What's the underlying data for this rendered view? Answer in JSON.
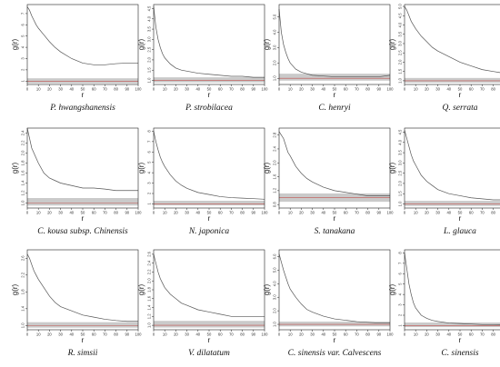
{
  "chart_data": [
    {
      "type": "line",
      "caption": "P. hwangshanensis",
      "xlabel": "r",
      "ylabel": "g(r)",
      "xticks": [
        "0",
        "10",
        "20",
        "30",
        "40",
        "50",
        "60",
        "70",
        "80",
        "90",
        "100"
      ],
      "yticks": [
        "1",
        "2",
        "3",
        "4",
        "5",
        "6",
        "7"
      ],
      "xlim": [
        0,
        100
      ],
      "ylim": [
        0.7,
        7.8
      ],
      "x": [
        0,
        2,
        4,
        6,
        8,
        10,
        15,
        20,
        25,
        30,
        40,
        50,
        60,
        70,
        80,
        90,
        100
      ],
      "series": [
        {
          "values": [
            7.6,
            7.3,
            6.8,
            6.4,
            6.0,
            5.7,
            5.1,
            4.5,
            4.0,
            3.6,
            3.0,
            2.6,
            2.45,
            2.45,
            2.55,
            2.6,
            2.6
          ]
        }
      ],
      "envelope": [
        0.8,
        1.25
      ],
      "null": 1
    },
    {
      "type": "line",
      "caption": "P. strobilacea",
      "xlabel": "r",
      "ylabel": "g(r)",
      "xticks": [
        "0",
        "10",
        "20",
        "30",
        "40",
        "50",
        "60",
        "70",
        "80",
        "90",
        "100"
      ],
      "yticks": [
        "1.0",
        "1.5",
        "2.0",
        "2.5",
        "3.0",
        "3.5",
        "4.0",
        "4.5"
      ],
      "xlim": [
        0,
        100
      ],
      "ylim": [
        0.8,
        4.7
      ],
      "x": [
        0,
        2,
        4,
        6,
        8,
        10,
        15,
        20,
        25,
        30,
        40,
        50,
        60,
        70,
        80,
        90,
        100
      ],
      "series": [
        {
          "values": [
            4.6,
            3.6,
            3.0,
            2.6,
            2.3,
            2.1,
            1.8,
            1.6,
            1.5,
            1.45,
            1.35,
            1.3,
            1.25,
            1.2,
            1.2,
            1.15,
            1.15
          ]
        }
      ],
      "envelope": [
        0.9,
        1.15
      ],
      "null": 1
    },
    {
      "type": "line",
      "caption": "C. henryi",
      "xlabel": "r",
      "ylabel": "g(r)",
      "xticks": [
        "0",
        "10",
        "20",
        "30",
        "40",
        "50",
        "60",
        "70",
        "80",
        "90",
        "100"
      ],
      "yticks": [
        "1.0",
        "2.0",
        "3.0",
        "4.0",
        "5.0"
      ],
      "xlim": [
        0,
        100
      ],
      "ylim": [
        0.6,
        5.8
      ],
      "x": [
        0,
        2,
        4,
        6,
        8,
        10,
        15,
        20,
        25,
        30,
        40,
        50,
        60,
        70,
        80,
        90,
        100
      ],
      "series": [
        {
          "values": [
            5.5,
            4.0,
            3.2,
            2.7,
            2.3,
            2.0,
            1.6,
            1.4,
            1.3,
            1.2,
            1.15,
            1.1,
            1.1,
            1.1,
            1.1,
            1.1,
            1.2
          ]
        }
      ],
      "envelope": [
        0.85,
        1.3
      ],
      "null": 1
    },
    {
      "type": "line",
      "caption": "Q. serrata",
      "xlabel": "r",
      "ylabel": "g(r)",
      "xticks": [
        "0",
        "10",
        "20",
        "30",
        "40",
        "50",
        "60",
        "70",
        "80",
        "90",
        "100"
      ],
      "yticks": [
        "1.0",
        "1.5",
        "2.0",
        "2.5",
        "3.0",
        "3.5",
        "4.0",
        "4.5",
        "5.0"
      ],
      "xlim": [
        0,
        100
      ],
      "ylim": [
        0.8,
        5.1
      ],
      "x": [
        0,
        2,
        4,
        6,
        8,
        10,
        15,
        20,
        25,
        30,
        40,
        50,
        60,
        70,
        80,
        90,
        100
      ],
      "series": [
        {
          "values": [
            5.0,
            4.8,
            4.5,
            4.2,
            4.0,
            3.8,
            3.4,
            3.1,
            2.8,
            2.6,
            2.3,
            2.0,
            1.8,
            1.6,
            1.5,
            1.4,
            1.3
          ]
        }
      ],
      "envelope": [
        0.9,
        1.15
      ],
      "null": 1
    },
    {
      "type": "line",
      "caption": "C. kousa subsp. Chinensis",
      "xlabel": "r",
      "ylabel": "g(r)",
      "xticks": [
        "0",
        "10",
        "20",
        "30",
        "40",
        "50",
        "60",
        "70",
        "80",
        "90",
        "100"
      ],
      "yticks": [
        "1.0",
        "1.2",
        "1.4",
        "1.6",
        "1.8",
        "2.0",
        "2.2",
        "2.4"
      ],
      "xlim": [
        0,
        100
      ],
      "ylim": [
        0.9,
        2.5
      ],
      "x": [
        0,
        2,
        4,
        6,
        8,
        10,
        15,
        20,
        25,
        30,
        40,
        50,
        60,
        70,
        80,
        90,
        100
      ],
      "series": [
        {
          "values": [
            2.5,
            2.3,
            2.1,
            2.0,
            1.9,
            1.8,
            1.6,
            1.5,
            1.45,
            1.4,
            1.35,
            1.3,
            1.3,
            1.28,
            1.25,
            1.25,
            1.25
          ]
        }
      ],
      "envelope": [
        0.95,
        1.1
      ],
      "null": 1
    },
    {
      "type": "line",
      "caption": "N. japonica",
      "xlabel": "r",
      "ylabel": "g(r)",
      "xticks": [
        "0",
        "10",
        "20",
        "30",
        "40",
        "50",
        "60",
        "70",
        "80",
        "90",
        "100"
      ],
      "yticks": [
        "1",
        "2",
        "3",
        "4",
        "5",
        "6",
        "7",
        "8"
      ],
      "xlim": [
        0,
        100
      ],
      "ylim": [
        0.6,
        8.3
      ],
      "x": [
        0,
        2,
        4,
        6,
        8,
        10,
        15,
        20,
        25,
        30,
        40,
        50,
        60,
        70,
        80,
        90,
        100
      ],
      "series": [
        {
          "values": [
            8.0,
            7.0,
            6.2,
            5.5,
            5.0,
            4.6,
            3.8,
            3.2,
            2.8,
            2.5,
            2.1,
            1.9,
            1.7,
            1.6,
            1.55,
            1.5,
            1.45
          ]
        }
      ],
      "envelope": [
        0.85,
        1.3
      ],
      "null": 1
    },
    {
      "type": "line",
      "caption": "S. tanakana",
      "xlabel": "r",
      "ylabel": "g(r)",
      "xticks": [
        "0",
        "10",
        "20",
        "30",
        "40",
        "50",
        "60",
        "70",
        "80",
        "90",
        "100"
      ],
      "yticks": [
        "0.8",
        "1.2",
        "1.6",
        "2.0",
        "2.4",
        "2.8"
      ],
      "xlim": [
        0,
        100
      ],
      "ylim": [
        0.7,
        3.0
      ],
      "x": [
        0,
        2,
        4,
        6,
        8,
        10,
        15,
        20,
        25,
        30,
        40,
        50,
        60,
        70,
        80,
        90,
        100
      ],
      "series": [
        {
          "values": [
            2.9,
            2.8,
            2.7,
            2.5,
            2.3,
            2.2,
            1.9,
            1.7,
            1.55,
            1.45,
            1.3,
            1.2,
            1.15,
            1.1,
            1.05,
            1.05,
            1.05
          ]
        }
      ],
      "envelope": [
        0.88,
        1.12
      ],
      "null": 1
    },
    {
      "type": "line",
      "caption": "L. glauca",
      "xlabel": "r",
      "ylabel": "g(r)",
      "xticks": [
        "0",
        "10",
        "20",
        "30",
        "40",
        "50",
        "60",
        "70",
        "80",
        "90",
        "100"
      ],
      "yticks": [
        "1.0",
        "1.5",
        "2.0",
        "2.5",
        "3.0",
        "3.5",
        "4.0",
        "4.5"
      ],
      "xlim": [
        0,
        100
      ],
      "ylim": [
        0.8,
        4.7
      ],
      "x": [
        0,
        2,
        4,
        6,
        8,
        10,
        15,
        20,
        25,
        30,
        40,
        50,
        60,
        70,
        80,
        90,
        100
      ],
      "series": [
        {
          "values": [
            4.6,
            4.2,
            3.8,
            3.4,
            3.1,
            2.9,
            2.4,
            2.1,
            1.9,
            1.7,
            1.5,
            1.4,
            1.3,
            1.25,
            1.2,
            1.2,
            1.15
          ]
        }
      ],
      "envelope": [
        0.9,
        1.15
      ],
      "null": 1
    },
    {
      "type": "line",
      "caption": "R. simsii",
      "xlabel": "r",
      "ylabel": "g(r)",
      "xticks": [
        "0",
        "10",
        "20",
        "30",
        "40",
        "50",
        "60",
        "70",
        "80",
        "90",
        "100"
      ],
      "yticks": [
        "1.0",
        "1.4",
        "1.8",
        "2.2",
        "2.6"
      ],
      "xlim": [
        0,
        100
      ],
      "ylim": [
        0.9,
        2.8
      ],
      "x": [
        0,
        2,
        4,
        6,
        8,
        10,
        15,
        20,
        25,
        30,
        40,
        50,
        60,
        70,
        80,
        90,
        100
      ],
      "series": [
        {
          "values": [
            2.7,
            2.6,
            2.45,
            2.3,
            2.2,
            2.1,
            1.9,
            1.7,
            1.55,
            1.45,
            1.35,
            1.25,
            1.2,
            1.15,
            1.12,
            1.1,
            1.1
          ]
        }
      ],
      "envelope": [
        0.95,
        1.08
      ],
      "null": 1
    },
    {
      "type": "line",
      "caption": "V. dilatatum",
      "xlabel": "r",
      "ylabel": "g(r)",
      "xticks": [
        "0",
        "10",
        "20",
        "30",
        "40",
        "50",
        "60",
        "70",
        "80",
        "90",
        "100"
      ],
      "yticks": [
        "1.0",
        "1.2",
        "1.4",
        "1.6",
        "1.8",
        "2.0",
        "2.2",
        "2.4",
        "2.6"
      ],
      "xlim": [
        0,
        100
      ],
      "ylim": [
        0.9,
        2.7
      ],
      "x": [
        0,
        2,
        4,
        6,
        8,
        10,
        15,
        20,
        25,
        30,
        40,
        50,
        60,
        70,
        80,
        90,
        100
      ],
      "series": [
        {
          "values": [
            2.6,
            2.4,
            2.2,
            2.05,
            1.95,
            1.85,
            1.7,
            1.6,
            1.5,
            1.45,
            1.35,
            1.3,
            1.25,
            1.2,
            1.2,
            1.2,
            1.2
          ]
        }
      ],
      "envelope": [
        0.95,
        1.1
      ],
      "null": 1
    },
    {
      "type": "line",
      "caption": "C. sinensis var. Calvescens",
      "xlabel": "r",
      "ylabel": "g(r)",
      "xticks": [
        "0",
        "10",
        "20",
        "30",
        "40",
        "50",
        "60",
        "70",
        "80",
        "90",
        "100"
      ],
      "yticks": [
        "1.0",
        "2.0",
        "3.0",
        "4.0",
        "5.0",
        "6.0"
      ],
      "xlim": [
        0,
        100
      ],
      "ylim": [
        0.6,
        6.5
      ],
      "x": [
        0,
        2,
        4,
        6,
        8,
        10,
        15,
        20,
        25,
        30,
        40,
        50,
        60,
        70,
        80,
        90,
        100
      ],
      "series": [
        {
          "values": [
            6.2,
            5.6,
            5.0,
            4.5,
            4.0,
            3.6,
            3.0,
            2.5,
            2.1,
            1.9,
            1.6,
            1.4,
            1.3,
            1.2,
            1.15,
            1.1,
            1.1
          ]
        }
      ],
      "envelope": [
        0.85,
        1.2
      ],
      "null": 1
    },
    {
      "type": "line",
      "caption": "C.  sinensis",
      "xlabel": "r",
      "ylabel": "g(r)",
      "xticks": [
        "0",
        "10",
        "20",
        "30",
        "40",
        "50",
        "60",
        "70",
        "80",
        "90",
        "100"
      ],
      "yticks": [
        "1",
        "2",
        "3",
        "4",
        "5",
        "6",
        "7",
        "8"
      ],
      "xlim": [
        0,
        100
      ],
      "ylim": [
        0.6,
        8.3
      ],
      "x": [
        0,
        2,
        4,
        6,
        8,
        10,
        15,
        20,
        25,
        30,
        40,
        50,
        60,
        70,
        80,
        90,
        100
      ],
      "series": [
        {
          "values": [
            8.0,
            6.5,
            5.0,
            4.0,
            3.2,
            2.7,
            2.0,
            1.7,
            1.5,
            1.4,
            1.25,
            1.2,
            1.15,
            1.1,
            1.1,
            1.05,
            1.05
          ]
        }
      ],
      "envelope": [
        0.85,
        1.3
      ],
      "null": 1
    }
  ],
  "colors": {
    "observed": "#555555",
    "envelope": "#b8b8b8",
    "null_line": "#c0504d",
    "axes": "#222222"
  }
}
